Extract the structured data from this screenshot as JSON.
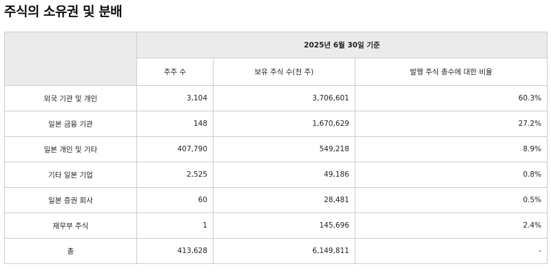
{
  "page": {
    "title": "주식의 소유권 및 분배"
  },
  "table": {
    "date_header": "2025년 6월 30일 기준",
    "columns": [
      "주주 수",
      "보유 주식 수(천 주)",
      "발행 주식 총수에 대한 비율"
    ],
    "rows": [
      {
        "category": "외국 기관 및 개인",
        "shareholders": "3,104",
        "shares": "3,706,601",
        "ratio": "60.3%"
      },
      {
        "category": "일본 금융 기관",
        "shareholders": "148",
        "shares": "1,670,629",
        "ratio": "27.2%"
      },
      {
        "category": "일본 개인 및 기타",
        "shareholders": "407,790",
        "shares": "549,218",
        "ratio": "8.9%"
      },
      {
        "category": "기타 일본 기업",
        "shareholders": "2,525",
        "shares": "49,186",
        "ratio": "0.8%"
      },
      {
        "category": "일본 증권 회사",
        "shareholders": "60",
        "shares": "28,481",
        "ratio": "0.5%"
      },
      {
        "category": "재무부 주식",
        "shareholders": "1",
        "shares": "145,696",
        "ratio": "2.4%"
      },
      {
        "category": "총",
        "shareholders": "413,628",
        "shares": "6,149,811",
        "ratio": "-"
      }
    ]
  }
}
